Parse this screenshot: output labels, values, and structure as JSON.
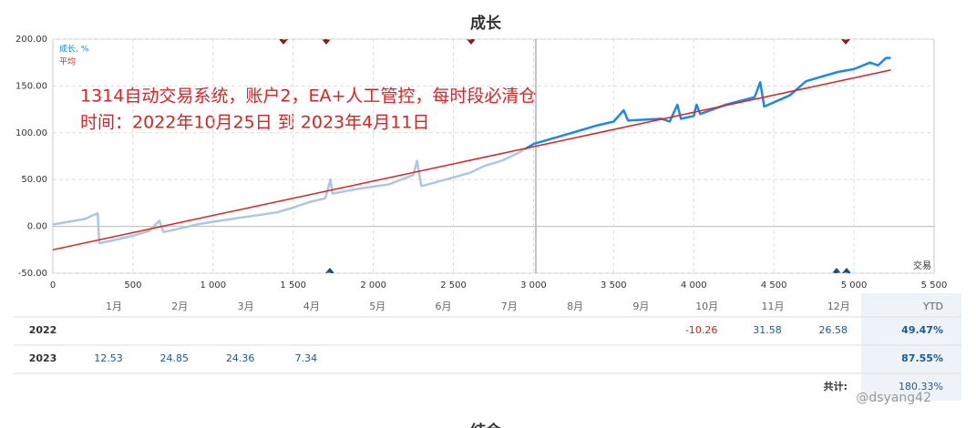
{
  "chart_data": {
    "type": "line",
    "title": "成长",
    "xlabel": "交易",
    "annotation": [
      "1314自动交易系统，账户2，EA+人工管控，每时段必清仓",
      "时间：2022年10月25日 到 2023年4月11日"
    ],
    "xlim": [
      0,
      5500
    ],
    "xticks": [
      0,
      500,
      {
        "value": 1000,
        "label": "1 000"
      },
      {
        "value": 1500,
        "label": "1 500"
      },
      {
        "value": 2000,
        "label": "2 000"
      },
      {
        "value": 2500,
        "label": "2 500"
      },
      {
        "value": 3000,
        "label": "3 000"
      },
      {
        "value": 3500,
        "label": "3 500"
      },
      {
        "value": 4000,
        "label": "4 000"
      },
      {
        "value": 4500,
        "label": "4 500"
      },
      {
        "value": 5000,
        "label": "5 000"
      },
      {
        "value": 5500,
        "label": "5 500"
      }
    ],
    "ylim": [
      -50,
      200
    ],
    "yticks": [
      {
        "value": -50,
        "label": "-50.00"
      },
      {
        "value": 0,
        "label": "0.00"
      },
      {
        "value": 50,
        "label": "50.00"
      },
      {
        "value": 100,
        "label": "100.00"
      },
      {
        "value": 150,
        "label": "150.00"
      },
      {
        "value": 200,
        "label": "200.00"
      }
    ],
    "grid": true,
    "series": [
      {
        "name": "成长, %",
        "color": "#1e88e5",
        "faded_color": "#aec6df",
        "color_change_x": 2950,
        "x": [
          0,
          100,
          200,
          280,
          290,
          400,
          500,
          600,
          665,
          690,
          800,
          900,
          1000,
          1200,
          1400,
          1500,
          1600,
          1700,
          1733,
          1745,
          1900,
          2100,
          2250,
          2273,
          2300,
          2450,
          2600,
          2700,
          2800,
          2900,
          3000,
          3200,
          3400,
          3500,
          3563,
          3590,
          3800,
          3850,
          3898,
          3920,
          4000,
          4017,
          4040,
          4200,
          4380,
          4415,
          4440,
          4600,
          4700,
          4800,
          4900,
          5000,
          5100,
          5150,
          5200,
          5230
        ],
        "values": [
          2,
          5,
          8,
          14,
          -18,
          -14,
          -10,
          -5,
          6,
          -6,
          -2,
          2,
          5,
          10,
          15,
          20,
          26,
          30,
          50,
          35,
          40,
          45,
          55,
          70,
          43,
          50,
          57,
          65,
          70,
          78,
          88,
          98,
          108,
          112,
          124,
          113,
          115,
          112,
          130,
          115,
          118,
          130,
          120,
          130,
          138,
          154,
          128,
          140,
          155,
          160,
          165,
          168,
          175,
          172,
          180,
          180
        ]
      },
      {
        "name": "平均",
        "color": "#e02020",
        "x": [
          0,
          5230
        ],
        "values": [
          -25,
          167
        ]
      }
    ]
  },
  "table": {
    "headers": [
      "1月",
      "2月",
      "3月",
      "4月",
      "5月",
      "6月",
      "7月",
      "8月",
      "9月",
      "10月",
      "11月",
      "12月",
      "YTD"
    ],
    "rows": [
      {
        "label": "2022",
        "cells": [
          null,
          null,
          null,
          null,
          null,
          null,
          null,
          null,
          null,
          "-10.26",
          "31.58",
          "26.58"
        ],
        "ytd": "49.47%"
      },
      {
        "label": "2023",
        "cells": [
          "12.53",
          "24.85",
          "24.36",
          "7.34",
          null,
          null,
          null,
          null,
          null,
          null,
          null,
          null
        ],
        "ytd": "87.55%"
      }
    ],
    "total_label": "共计:",
    "total": "180.33%"
  },
  "watermark": "@dsyang42",
  "next_title": "结余"
}
